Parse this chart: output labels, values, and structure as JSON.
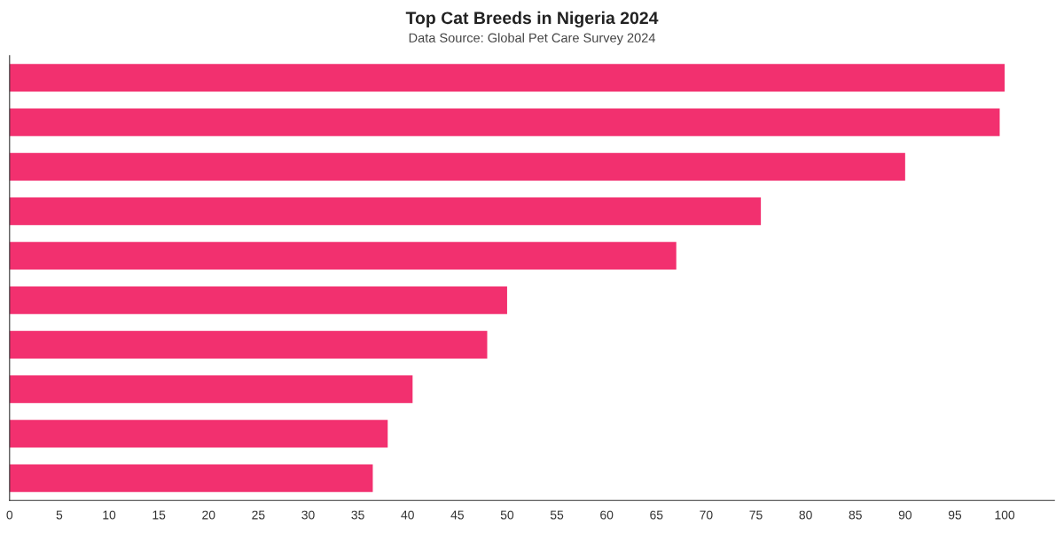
{
  "chart_data": {
    "type": "bar",
    "orientation": "horizontal",
    "title": "Top Cat Breeds in Nigeria 2024",
    "subtitle": "Data Source: Global Pet Care Survey 2024",
    "categories": [
      null,
      null,
      null,
      null,
      null,
      null,
      null,
      null,
      null,
      null
    ],
    "values": [
      100,
      99.5,
      90,
      75.5,
      67,
      50,
      48,
      40.5,
      38,
      36.5
    ],
    "color": "#f2306f",
    "xlim": [
      0,
      105
    ],
    "xticks": [
      0,
      5,
      10,
      15,
      20,
      25,
      30,
      35,
      40,
      45,
      50,
      55,
      60,
      65,
      70,
      75,
      80,
      85,
      90,
      95,
      100
    ],
    "tick_labels": "x",
    "grid": false,
    "legend": false
  }
}
